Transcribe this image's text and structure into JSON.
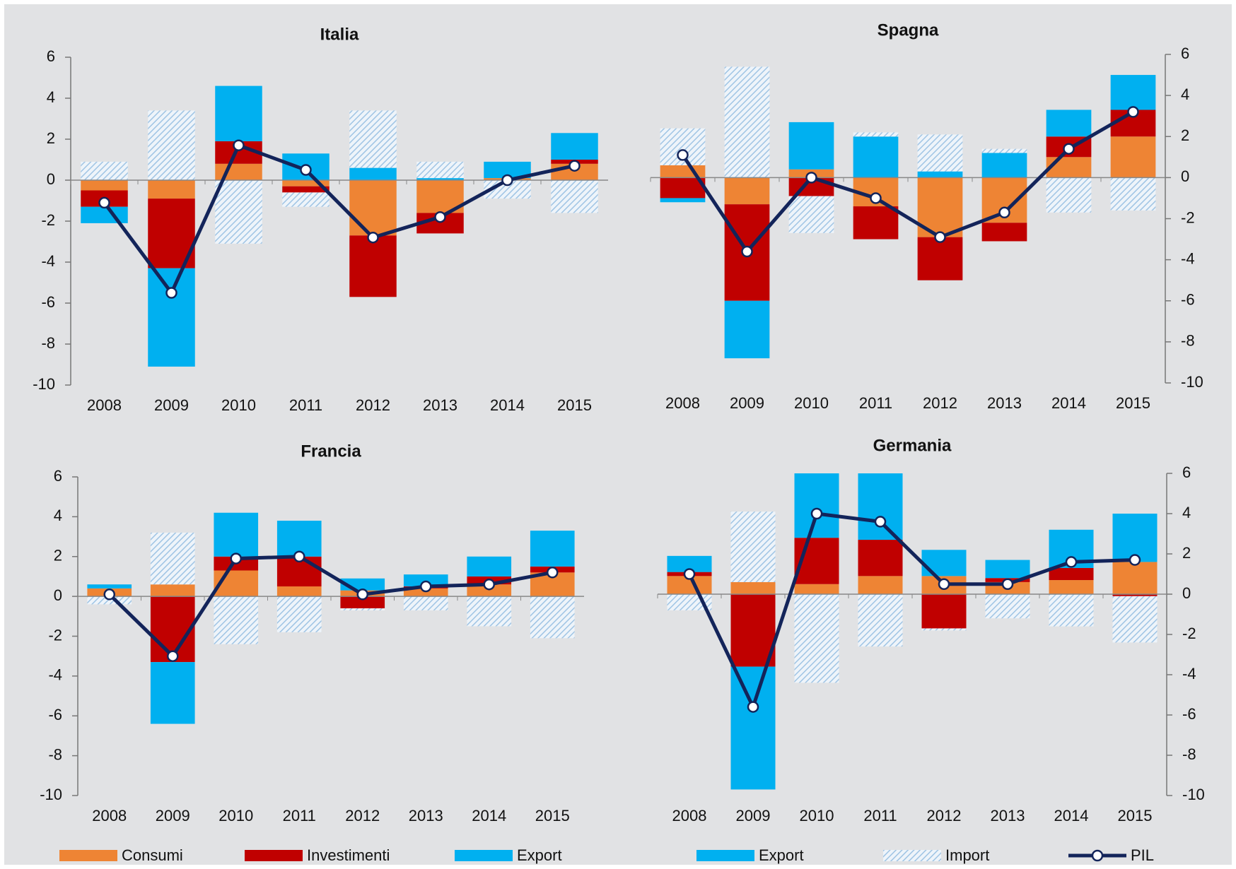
{
  "chart_data": [
    {
      "type": "bar",
      "title": "Italia",
      "axis_side": "left",
      "categories": [
        "2008",
        "2009",
        "2010",
        "2011",
        "2012",
        "2013",
        "2014",
        "2015"
      ],
      "ylim": [
        -10,
        6
      ],
      "yticks": [
        -10,
        -8,
        -6,
        -4,
        -2,
        0,
        2,
        4,
        6
      ],
      "series": [
        {
          "name": "Consumi",
          "color": "#ee8434",
          "values": [
            -0.5,
            -0.9,
            0.8,
            -0.3,
            -2.7,
            -1.6,
            0.1,
            0.8
          ]
        },
        {
          "name": "Investimenti",
          "color": "#c00000",
          "values": [
            -0.8,
            -3.4,
            1.1,
            -0.3,
            -3.0,
            -1.0,
            0,
            0.2
          ]
        },
        {
          "name": "Export",
          "color": "#00b0f0",
          "values": [
            -0.8,
            -4.8,
            2.7,
            1.3,
            0.6,
            0.1,
            0.8,
            1.3
          ]
        },
        {
          "name": "Import",
          "color": "#a9c9e4",
          "pattern": "hatch",
          "values": [
            0.9,
            3.4,
            -3.1,
            -0.7,
            2.8,
            0.8,
            -0.9,
            -1.6
          ]
        },
        {
          "name": "PIL",
          "color": "#13245a",
          "kind": "line",
          "values": [
            -1.1,
            -5.5,
            1.7,
            0.5,
            -2.8,
            -1.8,
            0.0,
            0.7
          ]
        }
      ]
    },
    {
      "type": "bar",
      "title": "Spagna",
      "axis_side": "right",
      "categories": [
        "2008",
        "2009",
        "2010",
        "2011",
        "2012",
        "2013",
        "2014",
        "2015"
      ],
      "ylim": [
        -10,
        6
      ],
      "yticks": [
        -10,
        -8,
        -6,
        -4,
        -2,
        0,
        2,
        4,
        6
      ],
      "series": [
        {
          "name": "Consumi",
          "color": "#ee8434",
          "values": [
            0.6,
            -1.3,
            0.4,
            -1.4,
            -2.9,
            -2.2,
            1.0,
            2.0
          ]
        },
        {
          "name": "Investimenti",
          "color": "#c00000",
          "values": [
            -1.0,
            -4.7,
            -0.9,
            -1.6,
            -2.1,
            -0.9,
            1.0,
            1.3
          ]
        },
        {
          "name": "Export",
          "color": "#00b0f0",
          "values": [
            -0.2,
            -2.8,
            2.3,
            2.0,
            0.3,
            1.2,
            1.3,
            1.7
          ]
        },
        {
          "name": "Import",
          "color": "#a9c9e4",
          "pattern": "hatch",
          "values": [
            1.8,
            5.4,
            -1.8,
            0.2,
            1.8,
            0.2,
            -1.7,
            -1.6
          ]
        },
        {
          "name": "PIL",
          "color": "#13245a",
          "kind": "line",
          "values": [
            1.1,
            -3.6,
            0.0,
            -1.0,
            -2.9,
            -1.7,
            1.4,
            3.2
          ]
        }
      ]
    },
    {
      "type": "bar",
      "title": "Francia",
      "axis_side": "left",
      "categories": [
        "2008",
        "2009",
        "2010",
        "2011",
        "2012",
        "2013",
        "2014",
        "2015"
      ],
      "ylim": [
        -10,
        6
      ],
      "yticks": [
        -10,
        -8,
        -6,
        -4,
        -2,
        0,
        2,
        4,
        6
      ],
      "series": [
        {
          "name": "Consumi",
          "color": "#ee8434",
          "values": [
            0.4,
            0.6,
            1.3,
            0.5,
            0.3,
            0.4,
            0.6,
            1.2
          ]
        },
        {
          "name": "Investimenti",
          "color": "#c00000",
          "values": [
            0,
            -3.3,
            0.7,
            1.5,
            -0.6,
            0.1,
            0.4,
            0.3
          ]
        },
        {
          "name": "Export",
          "color": "#00b0f0",
          "values": [
            0.2,
            -3.1,
            2.2,
            1.8,
            0.6,
            0.6,
            1.0,
            1.8
          ]
        },
        {
          "name": "Import",
          "color": "#a9c9e4",
          "pattern": "hatch",
          "values": [
            -0.4,
            2.6,
            -2.4,
            -1.8,
            -0.1,
            -0.7,
            -1.5,
            -2.1
          ]
        },
        {
          "name": "PIL",
          "color": "#13245a",
          "kind": "line",
          "values": [
            0.1,
            -3.0,
            1.9,
            2.0,
            0.1,
            0.5,
            0.6,
            1.2
          ]
        }
      ]
    },
    {
      "type": "bar",
      "title": "Germania",
      "axis_side": "right",
      "categories": [
        "2008",
        "2009",
        "2010",
        "2011",
        "2012",
        "2013",
        "2014",
        "2015"
      ],
      "ylim": [
        -10,
        6
      ],
      "yticks": [
        -10,
        -8,
        -6,
        -4,
        -2,
        0,
        2,
        4,
        6
      ],
      "series": [
        {
          "name": "Consumi",
          "color": "#ee8434",
          "values": [
            0.9,
            0.6,
            0.5,
            0.9,
            0.9,
            0.6,
            0.7,
            1.6
          ]
        },
        {
          "name": "Investimenti",
          "color": "#c00000",
          "values": [
            0.2,
            -3.6,
            2.3,
            1.8,
            -1.7,
            0.2,
            0.6,
            -0.1
          ]
        },
        {
          "name": "Export",
          "color": "#00b0f0",
          "values": [
            0.8,
            -6.1,
            3.4,
            3.5,
            1.3,
            0.9,
            1.9,
            2.4
          ]
        },
        {
          "name": "Import",
          "color": "#a9c9e4",
          "pattern": "hatch",
          "values": [
            -0.8,
            3.5,
            -4.4,
            -2.6,
            -0.1,
            -1.2,
            -1.6,
            -2.3
          ]
        },
        {
          "name": "PIL",
          "color": "#13245a",
          "kind": "line",
          "values": [
            1.0,
            -5.6,
            4.0,
            3.6,
            0.5,
            0.5,
            1.6,
            1.7
          ]
        }
      ]
    }
  ]
}
